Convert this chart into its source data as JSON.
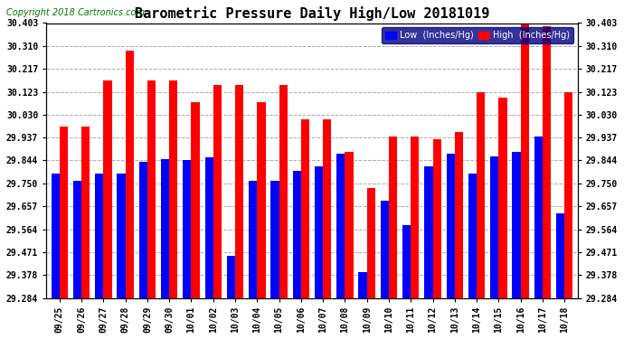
{
  "title": "Barometric Pressure Daily High/Low 20181019",
  "copyright": "Copyright 2018 Cartronics.com",
  "categories": [
    "09/25",
    "09/26",
    "09/27",
    "09/28",
    "09/29",
    "09/30",
    "10/01",
    "10/02",
    "10/03",
    "10/04",
    "10/05",
    "10/06",
    "10/07",
    "10/08",
    "10/09",
    "10/10",
    "10/11",
    "10/12",
    "10/13",
    "10/14",
    "10/15",
    "10/16",
    "10/17",
    "10/18"
  ],
  "low_values": [
    29.79,
    29.76,
    29.79,
    29.79,
    29.84,
    29.85,
    29.845,
    29.855,
    29.455,
    29.76,
    29.76,
    29.8,
    29.82,
    29.87,
    29.39,
    29.68,
    29.58,
    29.82,
    29.87,
    29.79,
    29.86,
    29.88,
    29.94,
    29.63
  ],
  "high_values": [
    29.98,
    29.98,
    30.17,
    30.29,
    30.17,
    30.17,
    30.08,
    30.15,
    30.15,
    30.08,
    30.15,
    30.01,
    30.01,
    29.88,
    29.73,
    29.94,
    29.94,
    29.93,
    29.96,
    30.12,
    30.1,
    30.4,
    30.39,
    30.12
  ],
  "yticks": [
    29.284,
    29.378,
    29.471,
    29.564,
    29.657,
    29.75,
    29.844,
    29.937,
    30.03,
    30.123,
    30.217,
    30.31,
    30.403
  ],
  "ymin": 29.284,
  "ymax": 30.403,
  "low_color": "#0000ff",
  "high_color": "#ff0000",
  "background_color": "#ffffff",
  "grid_color": "#aaaaaa",
  "title_fontsize": 11,
  "copyright_fontsize": 7,
  "legend_low_label": "Low  (Inches/Hg)",
  "legend_high_label": "High  (Inches/Hg)"
}
